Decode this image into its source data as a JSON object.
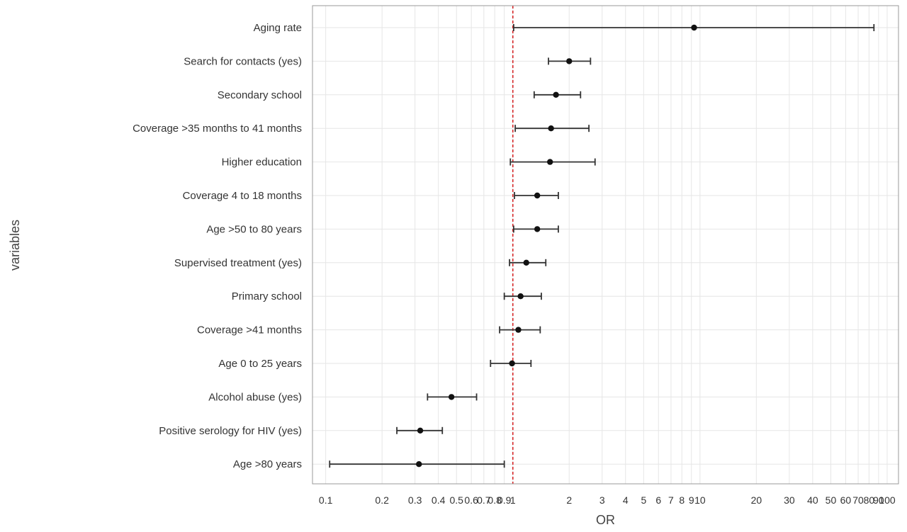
{
  "chart_data": {
    "type": "scatter",
    "subtype": "forest-plot",
    "xlabel": "OR",
    "ylabel": "variables",
    "x_scale": "log10",
    "xlim": [
      0.085,
      115
    ],
    "reference_line": {
      "x": 1,
      "style": "dashed",
      "color": "#d62728"
    },
    "grid": true,
    "x_ticks": [
      0.1,
      0.2,
      0.3,
      0.4,
      0.5,
      0.6,
      0.7,
      0.8,
      0.9,
      1,
      2,
      3,
      4,
      5,
      6,
      7,
      8,
      9,
      10,
      20,
      30,
      40,
      50,
      60,
      70,
      80,
      90,
      100
    ],
    "x_tick_labels": [
      "0.1",
      "0.2",
      "0.3",
      "0.4",
      "0.5",
      "0.6",
      "0.7",
      "0.8",
      "0.9",
      "1",
      "2",
      "3",
      "4",
      "5",
      "6",
      "7",
      "8",
      "9",
      "10",
      "20",
      "30",
      "40",
      "50",
      "60",
      "70",
      "80",
      "90",
      "100"
    ],
    "rows": [
      {
        "label": "Aging rate",
        "or": 9.3,
        "lo": 1.01,
        "hi": 85
      },
      {
        "label": "Search for contacts (yes)",
        "or": 2.0,
        "lo": 1.55,
        "hi": 2.6
      },
      {
        "label": "Secondary school",
        "or": 1.7,
        "lo": 1.3,
        "hi": 2.3
      },
      {
        "label": "Coverage >35 months to 41 months",
        "or": 1.6,
        "lo": 1.03,
        "hi": 2.55
      },
      {
        "label": "Higher education",
        "or": 1.58,
        "lo": 0.97,
        "hi": 2.75
      },
      {
        "label": "Coverage  4 to 18 months",
        "or": 1.35,
        "lo": 1.02,
        "hi": 1.75
      },
      {
        "label": "Age >50 to 80 years",
        "or": 1.35,
        "lo": 1.01,
        "hi": 1.75
      },
      {
        "label": "Supervised treatment (yes)",
        "or": 1.18,
        "lo": 0.96,
        "hi": 1.5
      },
      {
        "label": "Primary school",
        "or": 1.1,
        "lo": 0.9,
        "hi": 1.42
      },
      {
        "label": "Coverage >41 months",
        "or": 1.07,
        "lo": 0.85,
        "hi": 1.4
      },
      {
        "label": "Age 0 to 25 years",
        "or": 0.99,
        "lo": 0.76,
        "hi": 1.25
      },
      {
        "label": "Alcohol abuse (yes)",
        "or": 0.47,
        "lo": 0.35,
        "hi": 0.64
      },
      {
        "label": "Positive serology for HIV (yes)",
        "or": 0.32,
        "lo": 0.24,
        "hi": 0.42
      },
      {
        "label": "Age >80 years",
        "or": 0.315,
        "lo": 0.105,
        "hi": 0.9
      }
    ],
    "colors": {
      "point": "#111111",
      "ci_line": "#333333",
      "grid": "#e6e6e6",
      "ref": "#d62728",
      "frame": "#999999"
    }
  }
}
